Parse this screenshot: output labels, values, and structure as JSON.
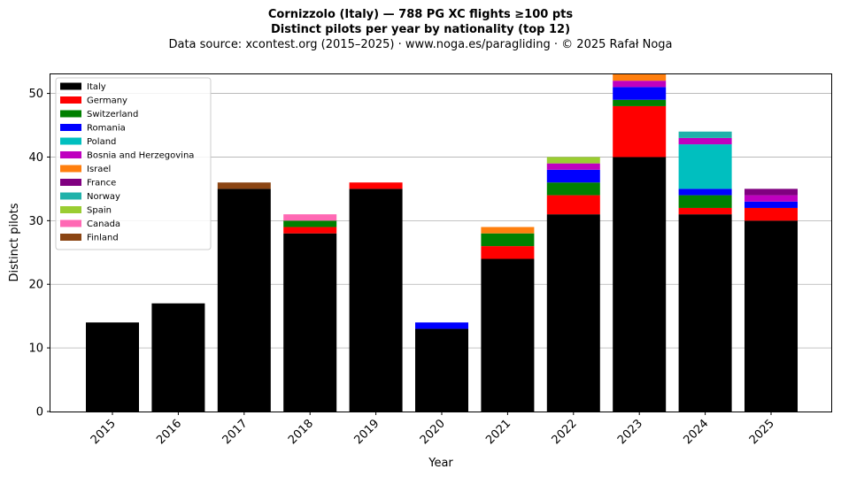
{
  "chart_data": {
    "type": "bar",
    "stacked": true,
    "title_lines": [
      "Cornizzolo (Italy)  —  788 PG XC flights ≥100 pts",
      "Distinct pilots per year by nationality (top 12)"
    ],
    "subtitle": "Data source: xcontest.org (2015–2025)  ·  www.noga.es/paragliding  ·  © 2025 Rafał Noga",
    "xlabel": "Year",
    "ylabel": "Distinct pilots",
    "ylim": [
      0,
      53
    ],
    "yticks": [
      0,
      10,
      20,
      30,
      40,
      50
    ],
    "grid": "y",
    "legend_position": "top-left",
    "categories": [
      "2015",
      "2016",
      "2017",
      "2018",
      "2019",
      "2020",
      "2021",
      "2022",
      "2023",
      "2024",
      "2025"
    ],
    "series": [
      {
        "name": "Italy",
        "color": "#000000",
        "values": [
          14,
          17,
          35,
          28,
          35,
          13,
          24,
          31,
          40,
          31,
          30
        ]
      },
      {
        "name": "Germany",
        "color": "#ff0000",
        "values": [
          0,
          0,
          0,
          1,
          1,
          0,
          2,
          3,
          8,
          1,
          2
        ]
      },
      {
        "name": "Switzerland",
        "color": "#008000",
        "values": [
          0,
          0,
          0,
          1,
          0,
          0,
          2,
          2,
          1,
          2,
          0
        ]
      },
      {
        "name": "Romania",
        "color": "#0000ff",
        "values": [
          0,
          0,
          0,
          0,
          0,
          1,
          0,
          2,
          2,
          1,
          1
        ]
      },
      {
        "name": "Poland",
        "color": "#00bfbf",
        "values": [
          0,
          0,
          0,
          0,
          0,
          0,
          0,
          0,
          0,
          7,
          0
        ]
      },
      {
        "name": "Bosnia and Herzegovina",
        "color": "#bf00bf",
        "values": [
          0,
          0,
          0,
          0,
          0,
          0,
          0,
          1,
          1,
          1,
          1
        ]
      },
      {
        "name": "Israel",
        "color": "#ff7f0e",
        "values": [
          0,
          0,
          0,
          0,
          0,
          0,
          1,
          0,
          1,
          0,
          0
        ]
      },
      {
        "name": "France",
        "color": "#800080",
        "values": [
          0,
          0,
          0,
          0,
          0,
          0,
          0,
          0,
          0,
          0,
          1
        ]
      },
      {
        "name": "Norway",
        "color": "#20b2aa",
        "values": [
          0,
          0,
          0,
          0,
          0,
          0,
          0,
          0,
          0,
          1,
          0
        ]
      },
      {
        "name": "Spain",
        "color": "#9acd32",
        "values": [
          0,
          0,
          0,
          0,
          0,
          0,
          0,
          1,
          0,
          0,
          0
        ]
      },
      {
        "name": "Canada",
        "color": "#ff69b4",
        "values": [
          0,
          0,
          0,
          1,
          0,
          0,
          0,
          0,
          0,
          0,
          0
        ]
      },
      {
        "name": "Finland",
        "color": "#8b4513",
        "values": [
          0,
          0,
          1,
          0,
          0,
          0,
          0,
          0,
          0,
          0,
          0
        ]
      }
    ]
  }
}
